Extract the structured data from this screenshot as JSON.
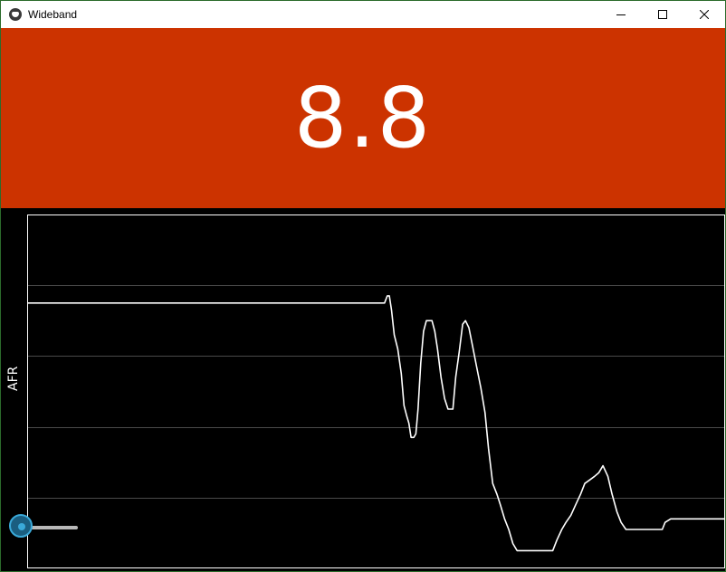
{
  "window": {
    "title": "Wideband"
  },
  "display": {
    "value": "8.8",
    "background": "#cc3300"
  },
  "chart_data": {
    "type": "line",
    "ylabel": "AFR",
    "xlabel": "",
    "title": "",
    "grid": true,
    "ylim": [
      0,
      1
    ],
    "xlim": [
      0,
      100
    ],
    "gridlines": [
      0.2,
      0.4,
      0.6,
      0.8
    ],
    "series": [
      {
        "values": [
          [
            0,
            0.75
          ],
          [
            10,
            0.75
          ],
          [
            20,
            0.75
          ],
          [
            30,
            0.75
          ],
          [
            40,
            0.75
          ],
          [
            50,
            0.75
          ],
          [
            51.2,
            0.75
          ],
          [
            51.6,
            0.77
          ],
          [
            51.9,
            0.77
          ],
          [
            52.2,
            0.73
          ],
          [
            52.6,
            0.66
          ],
          [
            53.1,
            0.62
          ],
          [
            53.6,
            0.55
          ],
          [
            54.0,
            0.46
          ],
          [
            54.4,
            0.43
          ],
          [
            54.7,
            0.41
          ],
          [
            55.0,
            0.37
          ],
          [
            55.4,
            0.37
          ],
          [
            55.7,
            0.38
          ],
          [
            56.0,
            0.45
          ],
          [
            56.4,
            0.58
          ],
          [
            56.8,
            0.67
          ],
          [
            57.2,
            0.7
          ],
          [
            58.0,
            0.7
          ],
          [
            58.4,
            0.67
          ],
          [
            58.8,
            0.62
          ],
          [
            59.3,
            0.54
          ],
          [
            59.8,
            0.48
          ],
          [
            60.3,
            0.45
          ],
          [
            60.6,
            0.45
          ],
          [
            61.0,
            0.45
          ],
          [
            61.4,
            0.54
          ],
          [
            61.9,
            0.61
          ],
          [
            62.4,
            0.69
          ],
          [
            62.8,
            0.7
          ],
          [
            63.3,
            0.68
          ],
          [
            63.8,
            0.63
          ],
          [
            64.4,
            0.57
          ],
          [
            65.0,
            0.51
          ],
          [
            65.6,
            0.44
          ],
          [
            66.1,
            0.34
          ],
          [
            66.7,
            0.24
          ],
          [
            67.3,
            0.21
          ],
          [
            67.8,
            0.18
          ],
          [
            68.4,
            0.14
          ],
          [
            69.0,
            0.11
          ],
          [
            69.6,
            0.07
          ],
          [
            70.2,
            0.05
          ],
          [
            71.0,
            0.05
          ],
          [
            73.0,
            0.05
          ],
          [
            74.5,
            0.05
          ],
          [
            75.3,
            0.05
          ],
          [
            75.9,
            0.08
          ],
          [
            76.6,
            0.11
          ],
          [
            77.2,
            0.13
          ],
          [
            77.9,
            0.15
          ],
          [
            78.6,
            0.18
          ],
          [
            79.3,
            0.21
          ],
          [
            79.9,
            0.24
          ],
          [
            80.6,
            0.25
          ],
          [
            81.3,
            0.26
          ],
          [
            81.9,
            0.27
          ],
          [
            82.5,
            0.29
          ],
          [
            83.2,
            0.26
          ],
          [
            83.8,
            0.21
          ],
          [
            84.5,
            0.16
          ],
          [
            85.1,
            0.13
          ],
          [
            85.8,
            0.11
          ],
          [
            86.5,
            0.11
          ],
          [
            88.0,
            0.11
          ],
          [
            90.0,
            0.11
          ],
          [
            91.0,
            0.11
          ],
          [
            91.4,
            0.13
          ],
          [
            92.2,
            0.14
          ],
          [
            93.0,
            0.14
          ],
          [
            95.0,
            0.14
          ],
          [
            97.5,
            0.14
          ],
          [
            100,
            0.14
          ]
        ]
      }
    ]
  },
  "slider": {
    "value": 0.1
  }
}
